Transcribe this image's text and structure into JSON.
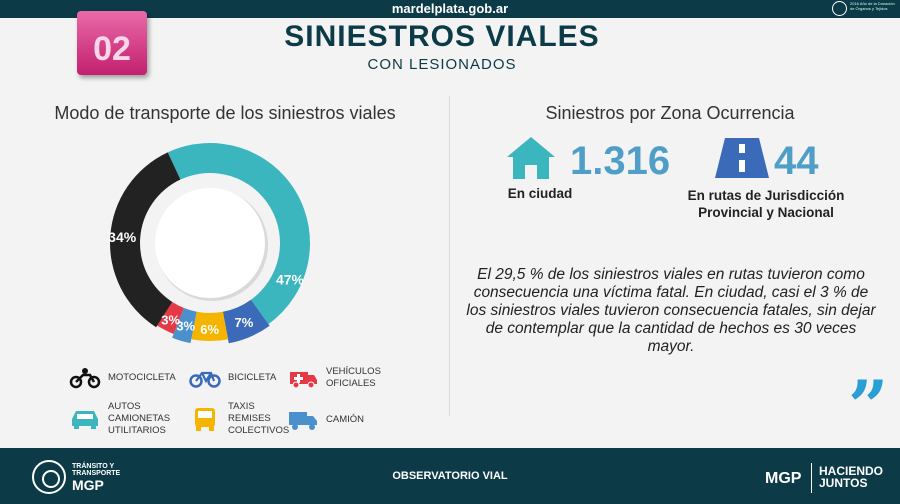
{
  "header": {
    "site": "mardelplata.gob.ar",
    "seal_text": "2016 Año de la Donación de Órganos y Tejidos",
    "section_number": "02",
    "title": "SINIESTROS VIALES",
    "subtitle": "CON LESIONADOS"
  },
  "left_panel": {
    "heading": "Modo de transporte de los siniestros viales"
  },
  "chart_data": {
    "type": "pie",
    "title": "Modo de transporte de los siniestros viales",
    "slices": [
      {
        "label": "AUTOS CAMIONETAS UTILITARIOS",
        "value": 47,
        "display": "47%",
        "color": "#3bb5be"
      },
      {
        "label": "BICICLETA",
        "value": 7,
        "display": "7%",
        "color": "#3b6ab8"
      },
      {
        "label": "TAXIS REMISES COLECTIVOS",
        "value": 6,
        "display": "6%",
        "color": "#f4b400"
      },
      {
        "label": "CAMIÓN",
        "value": 3,
        "display": "3%",
        "color": "#4a90cc"
      },
      {
        "label": "VEHÍCULOS OFICIALES",
        "value": 3,
        "display": "3%",
        "color": "#e63946"
      },
      {
        "label": "MOTOCICLETA",
        "value": 34,
        "display": "34%",
        "color": "#222222"
      }
    ]
  },
  "legend": [
    {
      "label": "MOTOCICLETA",
      "icon": "motorcycle-icon",
      "color": "#111111"
    },
    {
      "label": "BICICLETA",
      "icon": "bicycle-icon",
      "color": "#3b6ab8"
    },
    {
      "label": "VEHÍCULOS\nOFICIALES",
      "icon": "ambulance-icon",
      "color": "#e63946"
    },
    {
      "label": "AUTOS\nCAMIONETAS\nUTILITARIOS",
      "icon": "car-icon",
      "color": "#3bb5be"
    },
    {
      "label": "TAXIS\nREMISES\nCOLECTIVOS",
      "icon": "taxi-icon",
      "color": "#f4b400"
    },
    {
      "label": "CAMIÓN",
      "icon": "truck-icon",
      "color": "#4a90cc"
    }
  ],
  "right_panel": {
    "heading": "Siniestros por Zona Ocurrencia",
    "city": {
      "value": "1.316",
      "label": "En ciudad",
      "icon": "house-icon"
    },
    "routes": {
      "value": "44",
      "label": "En rutas de Jurisdicción\nProvincial y Nacional",
      "icon": "road-icon"
    },
    "paragraph": "El 29,5 %  de los siniestros viales en rutas tuvieron como consecuencia una víctima fatal.\nEn ciudad, casi el 3 % de los siniestros viales tuvieron consecuencia fatales, sin dejar de contemplar que la cantidad de hechos es 30 veces mayor.",
    "quote_mark": "”"
  },
  "footer": {
    "org_line1": "TRÁNSITO Y TRANSPORTE",
    "org_line2": "MGP",
    "center": "OBSERVATORIO VIAL",
    "brand": "MGP",
    "slogan_line1": "HACIENDO",
    "slogan_line2": "JUNTOS"
  },
  "colors": {
    "dark_teal": "#0c3a47",
    "magenta": "#c2206f",
    "stat_blue": "#4f9ec8"
  }
}
